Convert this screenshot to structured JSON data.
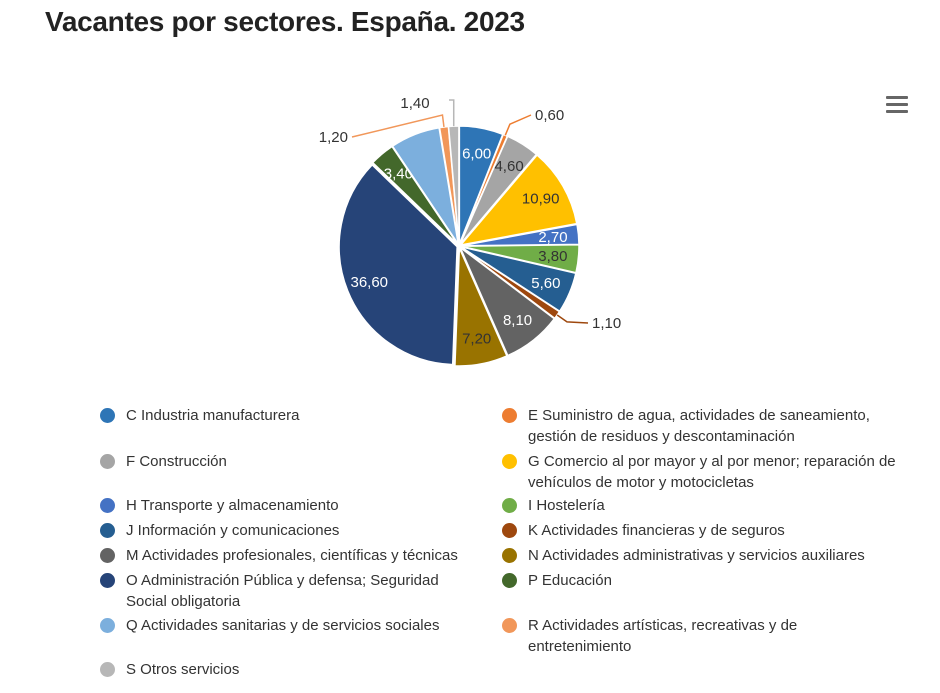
{
  "title": "Vacantes por sectores. España. 2023",
  "menu_icon": "hamburger-menu-icon",
  "chart_data": {
    "type": "pie",
    "title": "Vacantes por sectores. España. 2023",
    "legend_placement": "bottom",
    "slices": [
      {
        "name": "C Industria manufacturera",
        "value": 6.0,
        "label": "6,00",
        "color": "#2e75b6"
      },
      {
        "name": "E Suministro de agua, actividades de saneamiento, gestión de residuos y descontaminación",
        "value": 0.6,
        "label": "0,60",
        "color": "#ed7d31"
      },
      {
        "name": "F Construcción",
        "value": 4.6,
        "label": "4,60",
        "color": "#a5a5a5"
      },
      {
        "name": "G Comercio al por mayor y al por menor; reparación de vehículos de motor y motocicletas",
        "value": 10.9,
        "label": "10,90",
        "color": "#ffc000"
      },
      {
        "name": "H Transporte y almacenamiento",
        "value": 2.7,
        "label": "2,70",
        "color": "#4472c4"
      },
      {
        "name": "I Hostelería",
        "value": 3.8,
        "label": "3,80",
        "color": "#70ad47"
      },
      {
        "name": "J Información y comunicaciones",
        "value": 5.6,
        "label": "5,60",
        "color": "#255e91"
      },
      {
        "name": "K Actividades financieras y de seguros",
        "value": 1.1,
        "label": "1,10",
        "color": "#9e480e"
      },
      {
        "name": "M Actividades profesionales, científicas y técnicas",
        "value": 8.1,
        "label": "8,10",
        "color": "#636363"
      },
      {
        "name": "N Actividades administrativas y servicios auxiliares",
        "value": 7.2,
        "label": "7,20",
        "color": "#997300"
      },
      {
        "name": "O Administración Pública y defensa; Seguridad Social obligatoria",
        "value": 36.6,
        "label": "36,60",
        "color": "#264478"
      },
      {
        "name": "P Educación",
        "value": 3.4,
        "label": "3,40",
        "color": "#43682b"
      },
      {
        "name": "Q Actividades sanitarias y de servicios sociales",
        "value": 6.8,
        "label": "",
        "color": "#7cafdd"
      },
      {
        "name": "R Actividades artísticas, recreativas y de entretenimiento",
        "value": 1.2,
        "label": "1,20",
        "color": "#f1975a"
      },
      {
        "name": "S Otros servicios",
        "value": 1.4,
        "label": "1,40",
        "color": "#b7b7b7"
      }
    ]
  }
}
